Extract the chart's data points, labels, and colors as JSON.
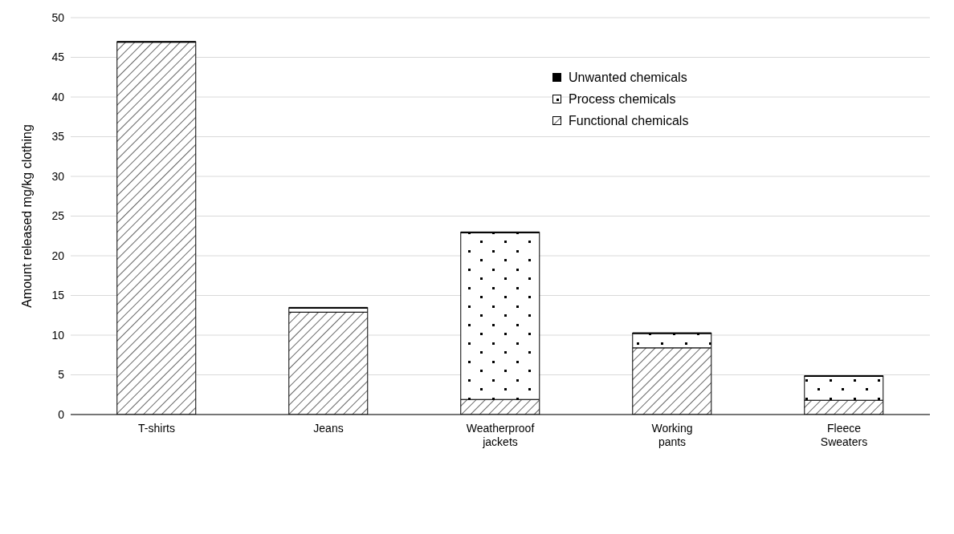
{
  "chart_data": {
    "type": "bar",
    "stacked": true,
    "ylabel": "Amount released mg/kg clothing",
    "categories": [
      "T-shirts",
      "Jeans",
      "Weatherproof jackets",
      "Working pants",
      "Fleece Sweaters"
    ],
    "series": [
      {
        "name": "Functional chemicals",
        "color": "#000000",
        "values": [
          46.9,
          12.9,
          1.9,
          8.4,
          1.8
        ]
      },
      {
        "name": "Process chemicals",
        "color": "#000000",
        "values": [
          0,
          0.5,
          21.0,
          1.8,
          3.0
        ]
      },
      {
        "name": "Unwanted chemicals",
        "color": "#000000",
        "values": [
          0.1,
          0.1,
          0.1,
          0.1,
          0.1
        ]
      }
    ],
    "ylim": [
      0,
      50
    ],
    "yticks": [
      0,
      5,
      10,
      15,
      20,
      25,
      30,
      35,
      40,
      45,
      50
    ],
    "grid": "y",
    "legend": "top right"
  }
}
